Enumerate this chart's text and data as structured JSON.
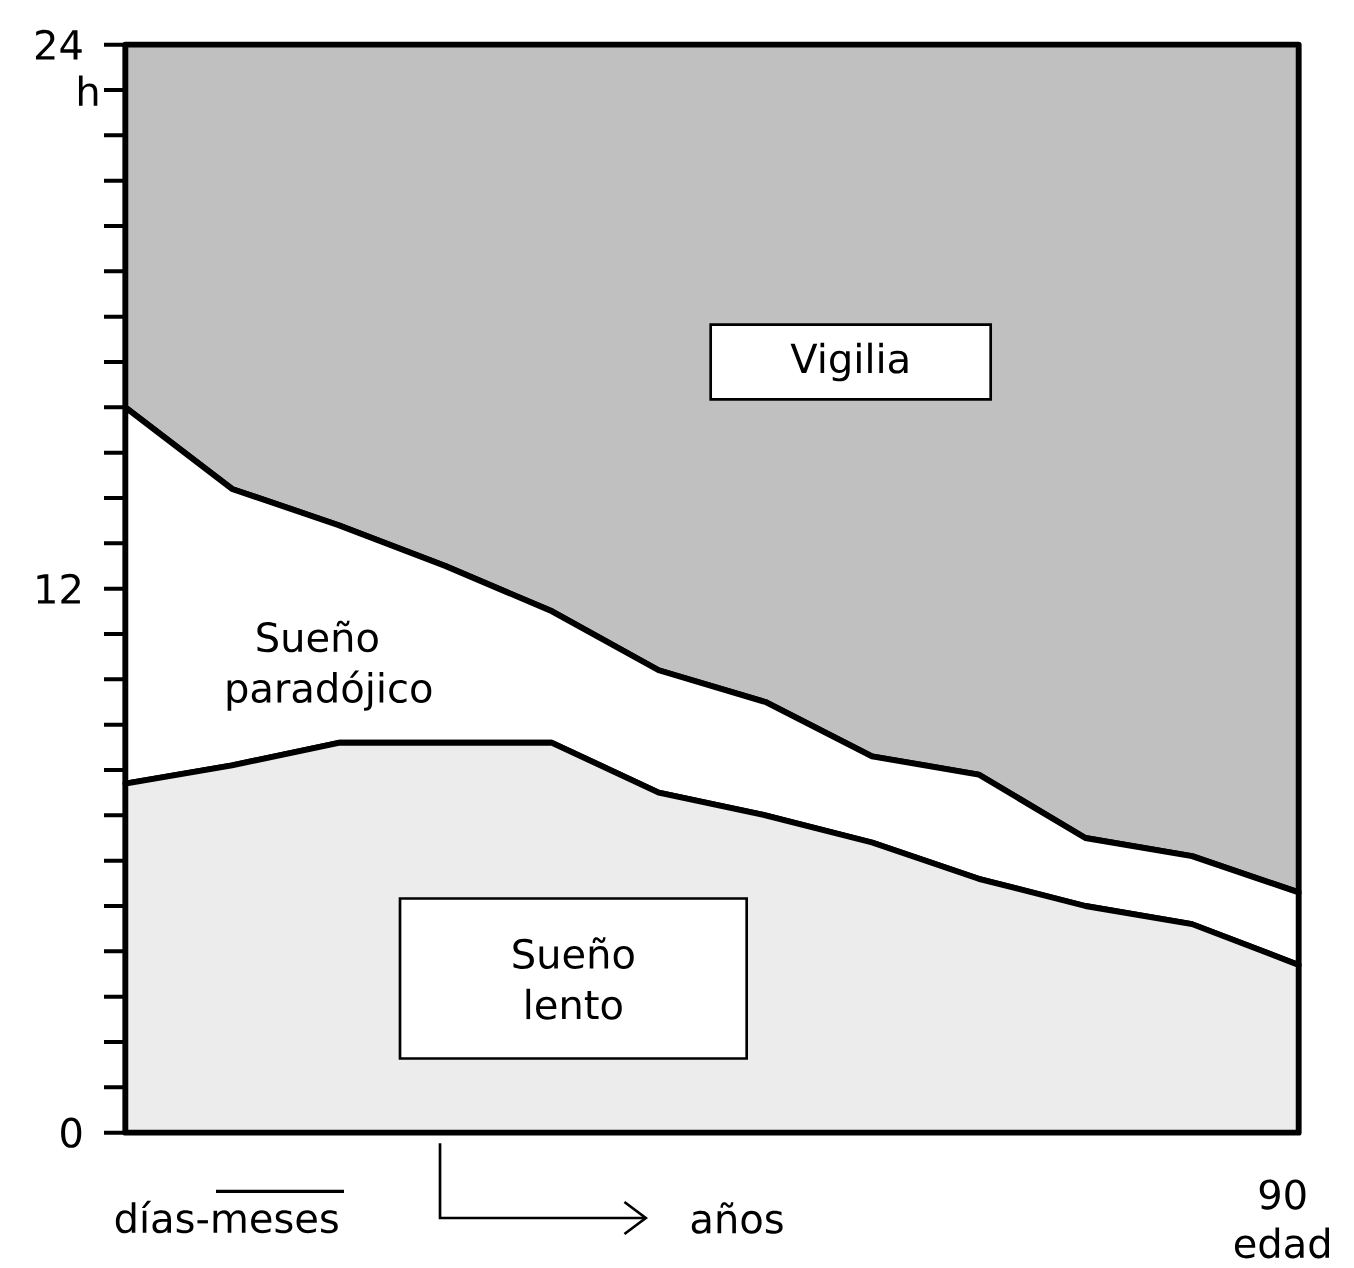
{
  "chart_data": {
    "type": "area",
    "stacked": true,
    "ylabel": "h",
    "xlabel": "edad",
    "categories": [
      null,
      null,
      null,
      null,
      null,
      null,
      null,
      null,
      null,
      null,
      null,
      "90"
    ],
    "series": [
      {
        "name": "Sueño lento",
        "color": "#ececec",
        "values": [
          7.7,
          8.1,
          8.6,
          8.6,
          8.6,
          7.5,
          7.0,
          6.4,
          5.6,
          5.0,
          4.6,
          3.7
        ]
      },
      {
        "name": "Sueño paradójico",
        "color": "#ffffff",
        "values": [
          8.3,
          6.1,
          4.8,
          3.9,
          2.9,
          2.7,
          2.5,
          1.9,
          2.3,
          1.5,
          1.5,
          1.6
        ]
      },
      {
        "name": "Vigilia",
        "color": "#c0c0c0",
        "values": [
          8.0,
          9.8,
          10.6,
          11.5,
          12.5,
          13.8,
          14.5,
          15.7,
          16.1,
          17.5,
          17.9,
          18.7
        ]
      }
    ],
    "ylim": [
      0,
      24
    ],
    "yticks": [
      0,
      12,
      24
    ],
    "annotations": [
      "días-meses",
      "años"
    ]
  }
}
